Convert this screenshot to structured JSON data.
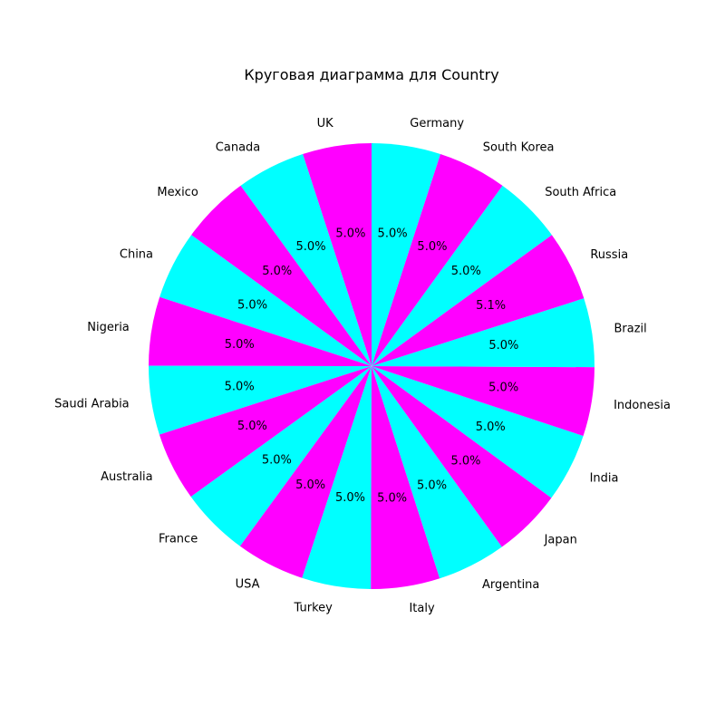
{
  "chart_data": {
    "type": "pie",
    "title": "Круговая диаграмма для Country",
    "start_angle_deg": 90,
    "direction": "counterclockwise",
    "colors": [
      "#ff00ff",
      "#00ffff"
    ],
    "slices": [
      {
        "label": "UK",
        "value": 5.0,
        "pct_label": "5.0%"
      },
      {
        "label": "Canada",
        "value": 5.0,
        "pct_label": "5.0%"
      },
      {
        "label": "Mexico",
        "value": 5.0,
        "pct_label": "5.0%"
      },
      {
        "label": "China",
        "value": 5.0,
        "pct_label": "5.0%"
      },
      {
        "label": "Nigeria",
        "value": 5.0,
        "pct_label": "5.0%"
      },
      {
        "label": "Saudi Arabia",
        "value": 5.0,
        "pct_label": "5.0%"
      },
      {
        "label": "Australia",
        "value": 5.0,
        "pct_label": "5.0%"
      },
      {
        "label": "France",
        "value": 5.0,
        "pct_label": "5.0%"
      },
      {
        "label": "USA",
        "value": 5.0,
        "pct_label": "5.0%"
      },
      {
        "label": "Turkey",
        "value": 5.0,
        "pct_label": "5.0%"
      },
      {
        "label": "Italy",
        "value": 5.0,
        "pct_label": "5.0%"
      },
      {
        "label": "Argentina",
        "value": 5.0,
        "pct_label": "5.0%"
      },
      {
        "label": "Japan",
        "value": 5.0,
        "pct_label": "5.0%"
      },
      {
        "label": "India",
        "value": 5.0,
        "pct_label": "5.0%"
      },
      {
        "label": "Indonesia",
        "value": 5.0,
        "pct_label": "5.0%"
      },
      {
        "label": "Brazil",
        "value": 5.0,
        "pct_label": "5.0%"
      },
      {
        "label": "Russia",
        "value": 5.1,
        "pct_label": "5.1%"
      },
      {
        "label": "South Africa",
        "value": 5.0,
        "pct_label": "5.0%"
      },
      {
        "label": "South Korea",
        "value": 5.0,
        "pct_label": "5.0%"
      },
      {
        "label": "Germany",
        "value": 5.0,
        "pct_label": "5.0%"
      }
    ]
  }
}
